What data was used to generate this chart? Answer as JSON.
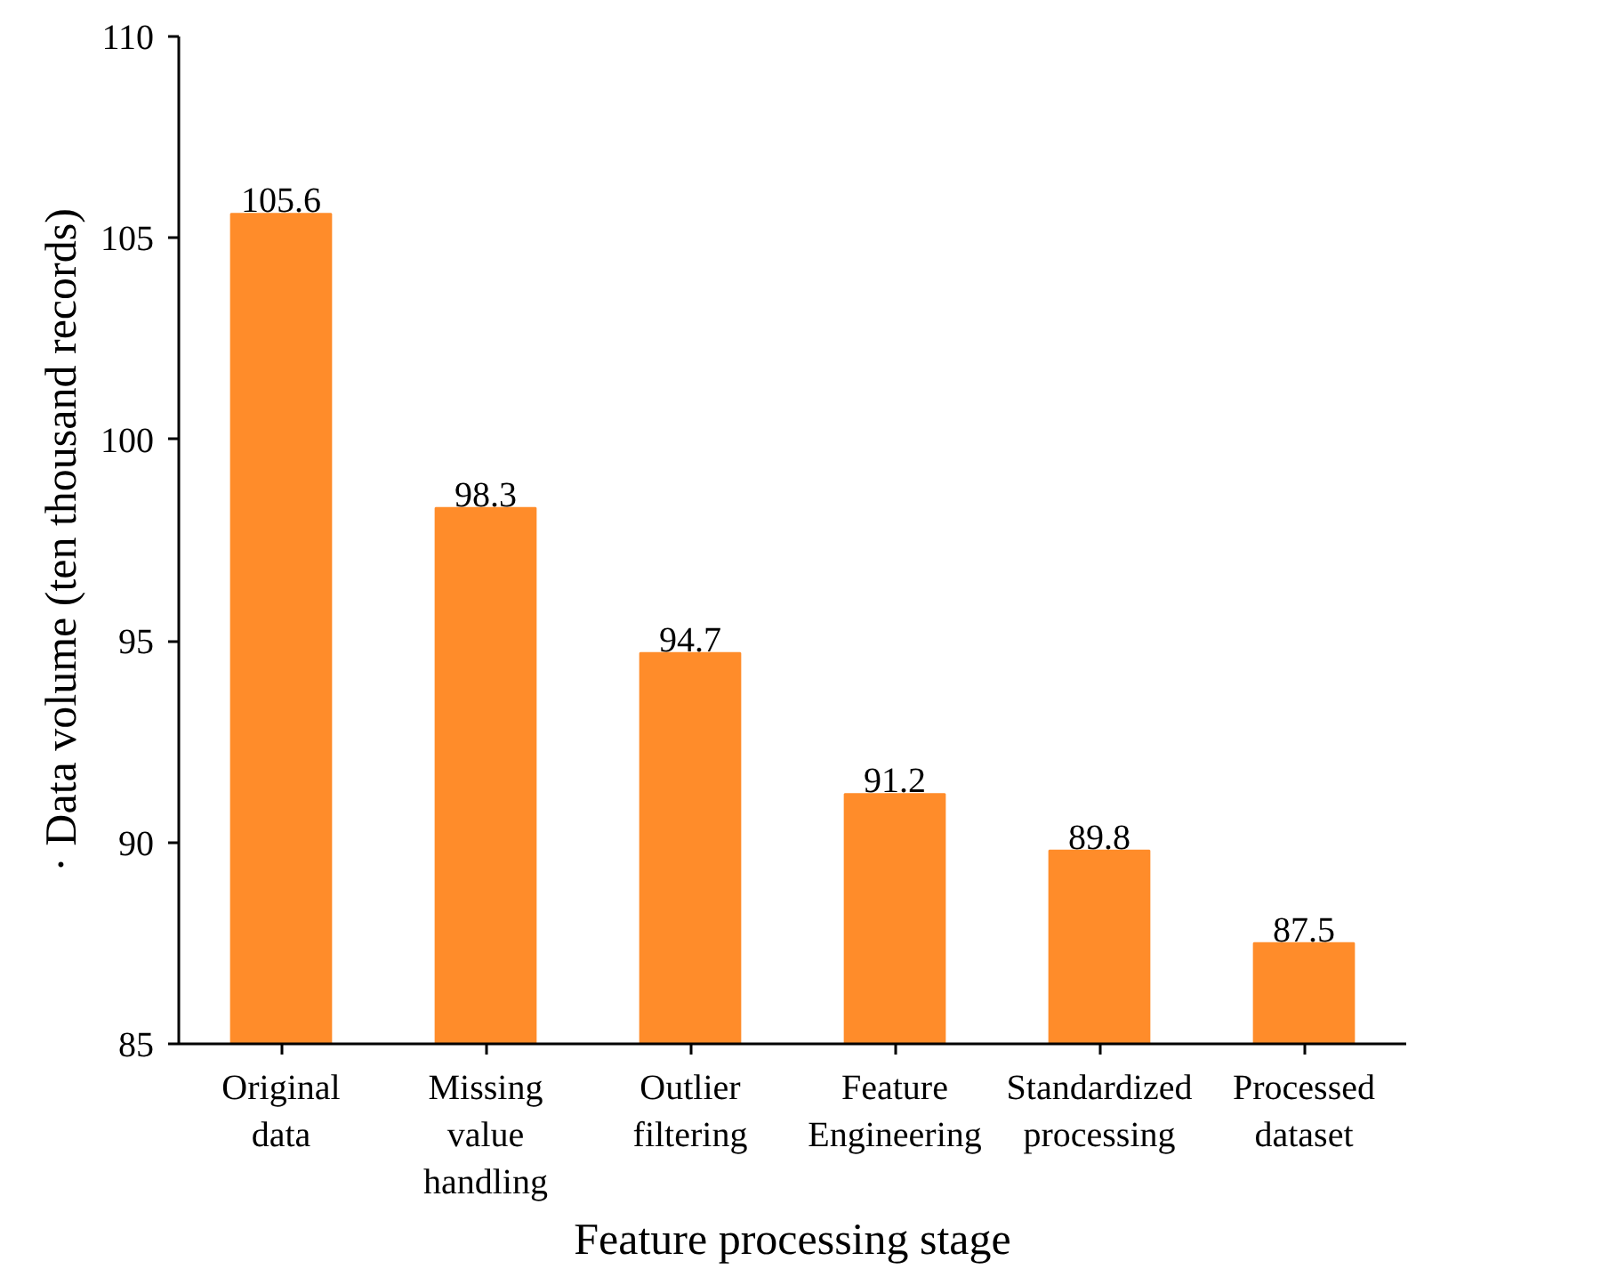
{
  "chart_data": {
    "type": "bar",
    "xlabel": "Feature processing stage",
    "ylabel": "· Data volume (ten thousand records)",
    "categories": [
      "Original\ndata",
      "Missing\nvalue\nhandling",
      "Outlier\nfiltering",
      "Feature\nEngineering",
      "Standardized\nprocessing",
      "Processed\ndataset"
    ],
    "values": [
      105.6,
      98.3,
      94.7,
      91.2,
      89.8,
      87.5
    ],
    "color": "#ff8c2a",
    "ylim": [
      85,
      110
    ],
    "yticks": [
      85,
      90,
      95,
      100,
      105,
      110
    ],
    "data_labels": true
  }
}
